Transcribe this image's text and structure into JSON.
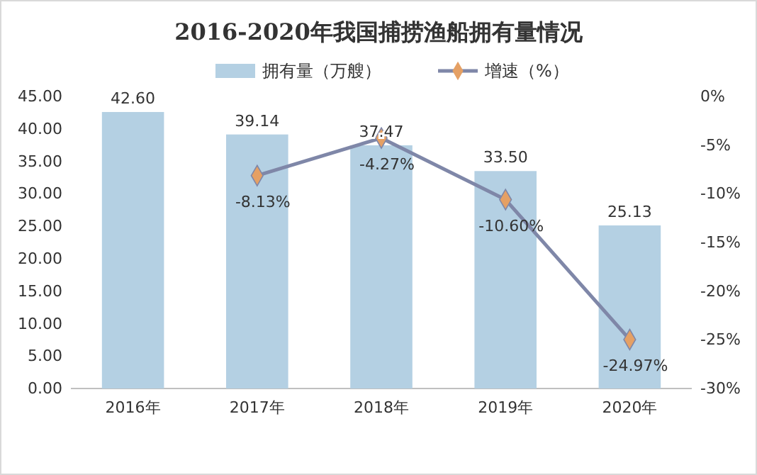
{
  "chart_data": {
    "type": "bar",
    "title": "2016-2020年我国捕捞渔船拥有量情况",
    "categories": [
      "2016年",
      "2017年",
      "2018年",
      "2019年",
      "2020年"
    ],
    "series": [
      {
        "name": "拥有量（万艘）",
        "color": "#b4d0e3",
        "values": [
          42.6,
          39.14,
          37.47,
          33.5,
          25.13
        ],
        "value_labels": [
          "42.60",
          "39.14",
          "37.47",
          "33.50",
          "25.13"
        ]
      },
      {
        "name": "增速（%）",
        "type": "line",
        "axis": "y2",
        "color": "#7f87a8",
        "marker": "diamond",
        "line_style": "solid",
        "values": [
          null,
          -8.13,
          -4.27,
          -10.6,
          -24.97
        ],
        "value_labels": [
          null,
          "-8.13%",
          "-4.27%",
          "-10.60%",
          "-24.97%"
        ]
      }
    ],
    "ylim": [
      0,
      45
    ],
    "yticks": [
      {
        "value": 0,
        "label": "0.00"
      },
      {
        "value": 5,
        "label": "5.00"
      },
      {
        "value": 10,
        "label": "10.00"
      },
      {
        "value": 15,
        "label": "15.00"
      },
      {
        "value": 20,
        "label": "20.00"
      },
      {
        "value": 25,
        "label": "25.00"
      },
      {
        "value": 30,
        "label": "30.00"
      },
      {
        "value": 35,
        "label": "35.00"
      },
      {
        "value": 40,
        "label": "40.00"
      },
      {
        "value": 45,
        "label": "45.00"
      }
    ],
    "y2lim": [
      -30,
      0
    ],
    "y2ticks": [
      {
        "value": 0,
        "label": "0%"
      },
      {
        "value": -5,
        "label": "-5%"
      },
      {
        "value": -10,
        "label": "-10%"
      },
      {
        "value": -15,
        "label": "-15%"
      },
      {
        "value": -20,
        "label": "-20%"
      },
      {
        "value": -25,
        "label": "-25%"
      },
      {
        "value": -30,
        "label": "-30%"
      }
    ],
    "legend": "top",
    "grid": false
  }
}
